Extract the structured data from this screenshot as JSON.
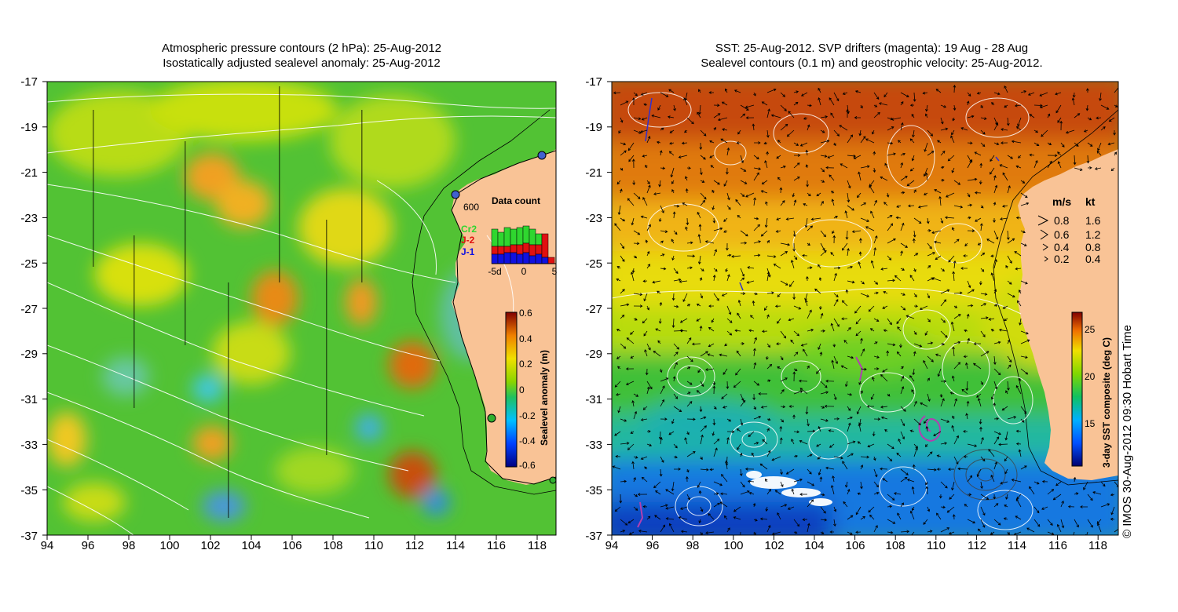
{
  "left_panel": {
    "title_line1": "Atmospheric pressure contours (2 hPa): 25-Aug-2012",
    "title_line2": "Isostatically adjusted sealevel anomaly: 25-Aug-2012",
    "x_ticks": [
      "94",
      "96",
      "98",
      "100",
      "102",
      "104",
      "106",
      "108",
      "110",
      "112",
      "114",
      "116",
      "118"
    ],
    "y_ticks": [
      "-17",
      "-19",
      "-21",
      "-23",
      "-25",
      "-27",
      "-29",
      "-31",
      "-33",
      "-35",
      "-37"
    ],
    "depth_label": "600",
    "inset": {
      "title": "Data count",
      "legend": [
        {
          "name": "Cr2",
          "color": "#2fd62f"
        },
        {
          "name": "J-2",
          "color": "#e01010"
        },
        {
          "name": "J-1",
          "color": "#1010e0"
        }
      ],
      "x_labels": [
        "-5d",
        "0",
        "5"
      ]
    },
    "colorbar": {
      "label": "Sealevel anomaly (m)",
      "ticks": [
        "0.6",
        "0.4",
        "0.2",
        "0",
        "-0.2",
        "-0.4",
        "-0.6"
      ]
    }
  },
  "right_panel": {
    "title_line1": "SST: 25-Aug-2012. SVP drifters (magenta): 19 Aug - 28 Aug",
    "title_line2": "Sealevel contours (0.1 m) and geostrophic velocity: 25-Aug-2012.",
    "x_ticks": [
      "94",
      "96",
      "98",
      "100",
      "102",
      "104",
      "106",
      "108",
      "110",
      "112",
      "114",
      "116",
      "118"
    ],
    "y_ticks": [
      "-17",
      "-19",
      "-21",
      "-23",
      "-25",
      "-27",
      "-29",
      "-31",
      "-33",
      "-35",
      "-37"
    ],
    "velocity_legend": {
      "header_ms": "m/s",
      "header_kt": "kt",
      "rows": [
        {
          "ms": "0.8",
          "kt": "1.6"
        },
        {
          "ms": "0.6",
          "kt": "1.2"
        },
        {
          "ms": "0.4",
          "kt": "0.8"
        },
        {
          "ms": "0.2",
          "kt": "0.4"
        }
      ]
    },
    "colorbar": {
      "label": "3-day SST composite (deg C)",
      "ticks": [
        "25",
        "20",
        "15"
      ]
    }
  },
  "credit": "© IMOS 30-Aug-2012 09:30 Hobart Time",
  "colors": {
    "land": "#f9c396",
    "contour": "#ffffff",
    "drifter": "#b040b0"
  }
}
